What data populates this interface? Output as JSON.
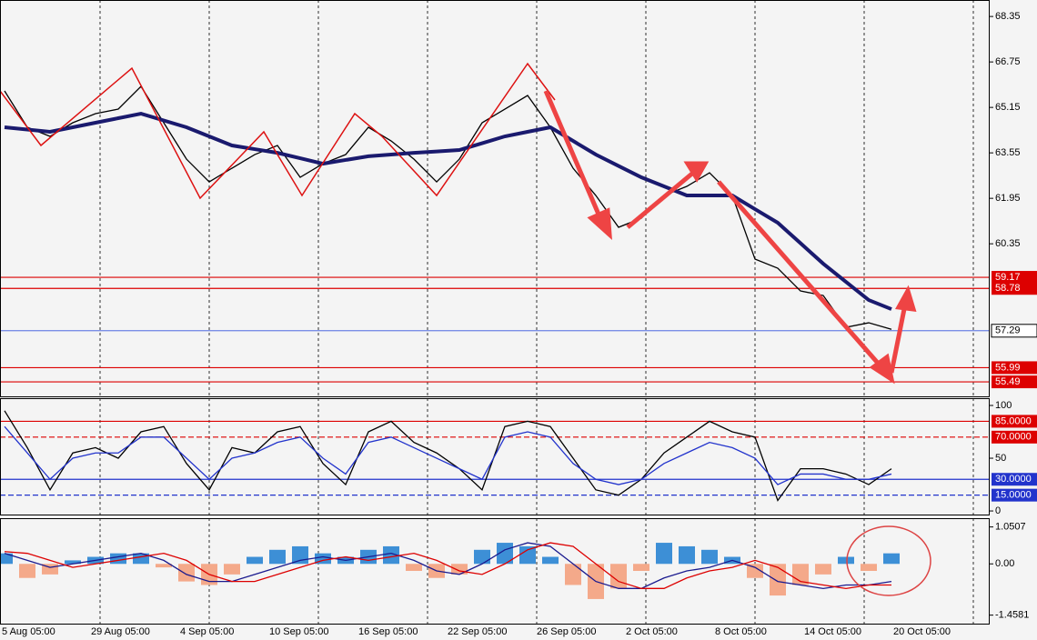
{
  "chart_data": [
    {
      "type": "line",
      "ylim": [
        54.98,
        68.93
      ],
      "yticks": [
        68.35,
        66.75,
        65.15,
        63.55,
        61.95,
        60.35
      ],
      "series": [
        {
          "color": "#000000",
          "values": [
            65.73,
            64.45,
            64.13,
            64.61,
            64.93,
            65.09,
            65.89,
            64.61,
            63.33,
            62.53,
            63.01,
            63.49,
            63.81,
            62.69,
            63.17,
            63.49,
            64.45,
            63.97,
            63.33,
            62.53,
            63.33,
            64.61,
            65.09,
            65.57,
            64.45,
            63.01,
            62.05,
            60.93,
            61.25,
            62.05,
            62.37,
            62.85,
            62.05,
            59.81,
            59.49,
            58.69,
            58.53,
            57.41,
            57.57,
            57.34
          ]
        },
        {
          "color": "#1a1a6e",
          "values": [
            64.45,
            64.37,
            64.29,
            64.45,
            64.61,
            64.77,
            64.93,
            64.69,
            64.45,
            64.13,
            63.81,
            63.68,
            63.55,
            63.36,
            63.17,
            63.3,
            63.43,
            63.49,
            63.55,
            63.6,
            63.65,
            63.89,
            64.13,
            64.29,
            64.45,
            63.97,
            63.49,
            63.09,
            62.69,
            62.37,
            62.05,
            62.05,
            62.05,
            61.57,
            61.09,
            60.37,
            59.65,
            59.01,
            58.37,
            58.05
          ]
        }
      ],
      "levels": [
        59.17,
        58.78,
        55.99,
        55.49
      ],
      "level_color": "#dd0000",
      "current": 57.29,
      "current_color": "#3355dd"
    },
    {
      "type": "line",
      "ylim": [
        -3.4,
        106.9
      ],
      "yticks": [
        100,
        50,
        0
      ],
      "series": [
        {
          "color": "#000000",
          "values": [
            95,
            60,
            20,
            55,
            60,
            50,
            75,
            80,
            45,
            20,
            60,
            55,
            75,
            80,
            45,
            25,
            75,
            85,
            65,
            55,
            40,
            20,
            80,
            85,
            80,
            50,
            20,
            15,
            30,
            55,
            70,
            85,
            75,
            70,
            10,
            40,
            40,
            35,
            25,
            40
          ]
        },
        {
          "color": "#2233cc",
          "values": [
            80,
            55,
            30,
            50,
            55,
            55,
            70,
            70,
            50,
            30,
            50,
            55,
            65,
            70,
            50,
            35,
            65,
            70,
            60,
            50,
            40,
            30,
            70,
            75,
            70,
            45,
            30,
            25,
            30,
            45,
            55,
            65,
            60,
            50,
            25,
            35,
            35,
            30,
            30,
            35
          ]
        }
      ],
      "levels": [
        {
          "value": 85,
          "label": "85.0000",
          "color": "#dd0000"
        },
        {
          "value": 70,
          "label": "70.0000",
          "color": "#dd0000"
        },
        {
          "value": 30,
          "label": "30.0000",
          "color": "#2233cc"
        },
        {
          "value": 15,
          "label": "15.0000",
          "color": "#2233cc"
        }
      ]
    },
    {
      "type": "macd",
      "ylim": [
        -1.7,
        1.3
      ],
      "yticks": [
        1.0507,
        {
          "value": 0,
          "label": "0.00"
        },
        -1.4581
      ],
      "histogram": [
        0.3,
        -0.4,
        -0.3,
        0.1,
        0.2,
        0.3,
        0.3,
        -0.1,
        -0.5,
        -0.6,
        -0.3,
        0.2,
        0.4,
        0.5,
        0.3,
        0.2,
        0.4,
        0.5,
        -0.2,
        -0.4,
        -0.3,
        0.4,
        0.6,
        0.5,
        0.2,
        -0.6,
        -1.0,
        -0.7,
        -0.2,
        0.6,
        0.5,
        0.4,
        0.2,
        -0.4,
        -0.9,
        -0.6,
        -0.3,
        0.2,
        -0.2,
        0.3
      ],
      "positive_color": "#3d8fd6",
      "negative_color": "#f4a98a",
      "series": [
        {
          "color": "#1a1a8e",
          "values": [
            0.3,
            0.1,
            -0.1,
            0.0,
            0.1,
            0.2,
            0.3,
            0.1,
            -0.3,
            -0.5,
            -0.5,
            -0.3,
            -0.1,
            0.1,
            0.2,
            0.1,
            0.2,
            0.3,
            0.1,
            -0.2,
            -0.3,
            0.0,
            0.4,
            0.6,
            0.5,
            0.0,
            -0.5,
            -0.7,
            -0.7,
            -0.4,
            -0.2,
            -0.1,
            0.1,
            -0.1,
            -0.5,
            -0.6,
            -0.7,
            -0.6,
            -0.6,
            -0.5
          ]
        },
        {
          "color": "#dd0000",
          "values": [
            0.35,
            0.3,
            0.1,
            -0.1,
            0.0,
            0.1,
            0.2,
            0.3,
            0.1,
            -0.3,
            -0.5,
            -0.5,
            -0.3,
            -0.1,
            0.1,
            0.2,
            0.1,
            0.2,
            0.3,
            0.1,
            -0.2,
            -0.3,
            0.0,
            0.4,
            0.6,
            0.5,
            0.0,
            -0.5,
            -0.7,
            -0.7,
            -0.4,
            -0.2,
            -0.1,
            0.1,
            -0.1,
            -0.5,
            -0.6,
            -0.7,
            -0.6,
            -0.6
          ]
        }
      ]
    }
  ],
  "x_labels": [
    "5 Aug 05:00",
    "29 Aug 05:00",
    "4 Sep 05:00",
    "10 Sep 05:00",
    "16 Sep 05:00",
    "22 Sep 05:00",
    "26 Sep 05:00",
    "2 Oct 05:00",
    "8 Oct 05:00",
    "14 Oct 05:00",
    "20 Oct 05:00"
  ]
}
